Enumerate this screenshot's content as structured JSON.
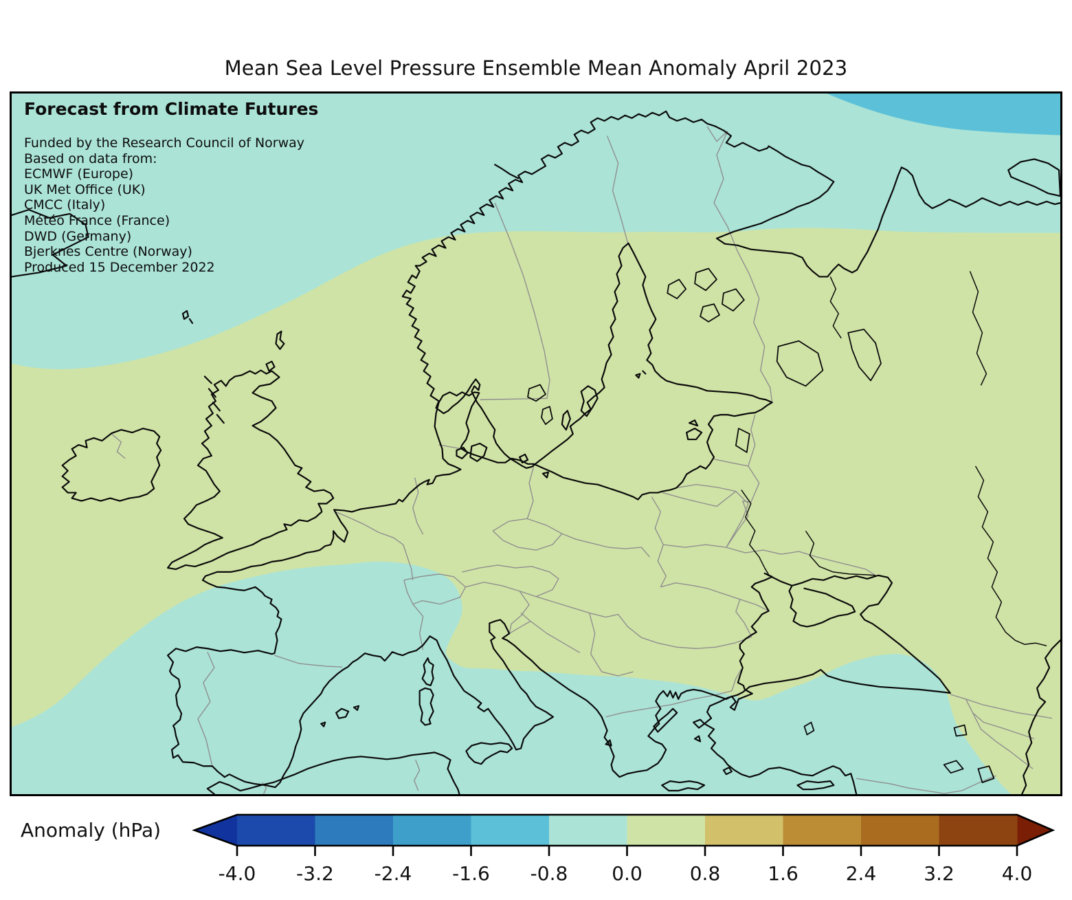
{
  "title": "Mean Sea Level Pressure Ensemble Mean Anomaly April 2023",
  "map_overlay": {
    "heading": "Forecast from Climate Futures",
    "credits": [
      "Funded by the Research Council of Norway",
      "Based on data from:",
      "ECMWF (Europe)",
      "UK Met Office (UK)",
      "CMCC (Italy)",
      "Météo France (France)",
      "DWD (Germany)",
      "Bjerknes Centre (Norway)",
      "Produced 15 December 2022"
    ]
  },
  "colorbar": {
    "label": "Anomaly (hPa)",
    "tick_labels": [
      "-4.0",
      "-3.2",
      "-2.4",
      "-1.6",
      "-0.8",
      "0.0",
      "0.8",
      "1.6",
      "2.4",
      "3.2",
      "4.0"
    ],
    "segment_colors": [
      "#1c4aac",
      "#2d7bbc",
      "#3ea0ca",
      "#5cc1d8",
      "#abe3d6",
      "#d0e3a6",
      "#d2c06a",
      "#bd8d35",
      "#aa6d1f",
      "#8e4411"
    ],
    "under_arrow_color": "#11339e",
    "over_arrow_color": "#7a1f06"
  },
  "map": {
    "band_colors": {
      "neg16_to_neg08": "#5cc1d8",
      "neg08_to_0": "#abe3d6",
      "band_0_to_08": "#d0e3a6"
    },
    "coastline_color": "#0a0a0a",
    "border_color": "#8f8f8f"
  },
  "chart_data": {
    "type": "heatmap",
    "subtype": "filled_contour_map",
    "title": "Mean Sea Level Pressure Ensemble Mean Anomaly April 2023",
    "variable": "Mean sea level pressure ensemble mean anomaly",
    "units": "hPa",
    "region": "Europe and North Atlantic",
    "colorbar": {
      "label": "Anomaly (hPa)",
      "orientation": "horizontal",
      "levels": [
        -4.0,
        -3.2,
        -2.4,
        -1.6,
        -0.8,
        0.0,
        0.8,
        1.6,
        2.4,
        3.2,
        4.0
      ],
      "colors": [
        "#1c4aac",
        "#2d7bbc",
        "#3ea0ca",
        "#5cc1d8",
        "#abe3d6",
        "#d0e3a6",
        "#d2c06a",
        "#bd8d35",
        "#aa6d1f",
        "#8e4411"
      ],
      "extend": "both",
      "under_color": "#11339e",
      "over_color": "#7a1f06"
    },
    "visible_bands": [
      {
        "range_hpa": [
          -1.6,
          -0.8
        ],
        "color": "#5cc1d8",
        "location": "far northeast corner of map (Barents Sea)"
      },
      {
        "range_hpa": [
          -0.8,
          0.0
        ],
        "color": "#abe3d6",
        "location": "northern Arctic band, southwest Atlantic with Iberia and western France, Mediterranean through Turkey"
      },
      {
        "range_hpa": [
          0.0,
          0.8
        ],
        "color": "#d0e3a6",
        "location": "broad central band: British Isles, Scandinavia, central and eastern Europe, Balkans, Caucasus"
      }
    ],
    "annotations": [
      "Forecast from Climate Futures",
      "Funded by the Research Council of Norway",
      "Based on data from: ECMWF (Europe), UK Met Office (UK), CMCC (Italy), Météo France (France), DWD (Germany), Bjerknes Centre (Norway)",
      "Produced 15 December 2022"
    ]
  }
}
